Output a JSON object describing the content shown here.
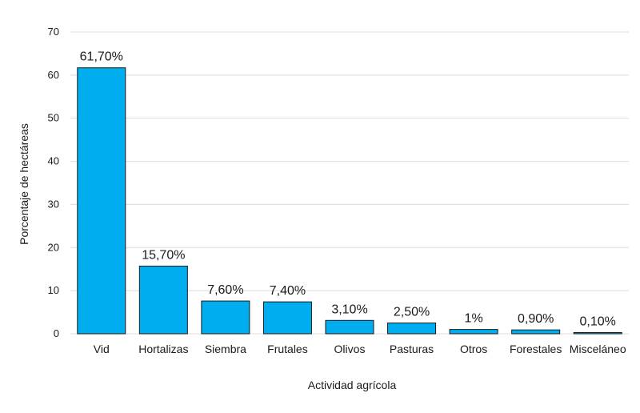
{
  "chart_data": {
    "type": "bar",
    "title": "",
    "xlabel": "Actividad agrícola",
    "ylabel": "Porcentaje de hectáreas",
    "ylim": [
      0,
      70
    ],
    "yticks": [
      0,
      10,
      20,
      30,
      40,
      50,
      60,
      70
    ],
    "grid": true,
    "bar_color": "#00aeef",
    "categories": [
      "Vid",
      "Hortalizas",
      "Siembra",
      "Frutales",
      "Olivos",
      "Pasturas",
      "Otros",
      "Forestales",
      "Misceláneo"
    ],
    "values": [
      61.7,
      15.7,
      7.6,
      7.4,
      3.1,
      2.5,
      1,
      0.9,
      0.1
    ],
    "data_labels": [
      "61,70%",
      "15,70%",
      "7,60%",
      "7,40%",
      "3,10%",
      "2,50%",
      "1%",
      "0,90%",
      "0,10%"
    ]
  }
}
